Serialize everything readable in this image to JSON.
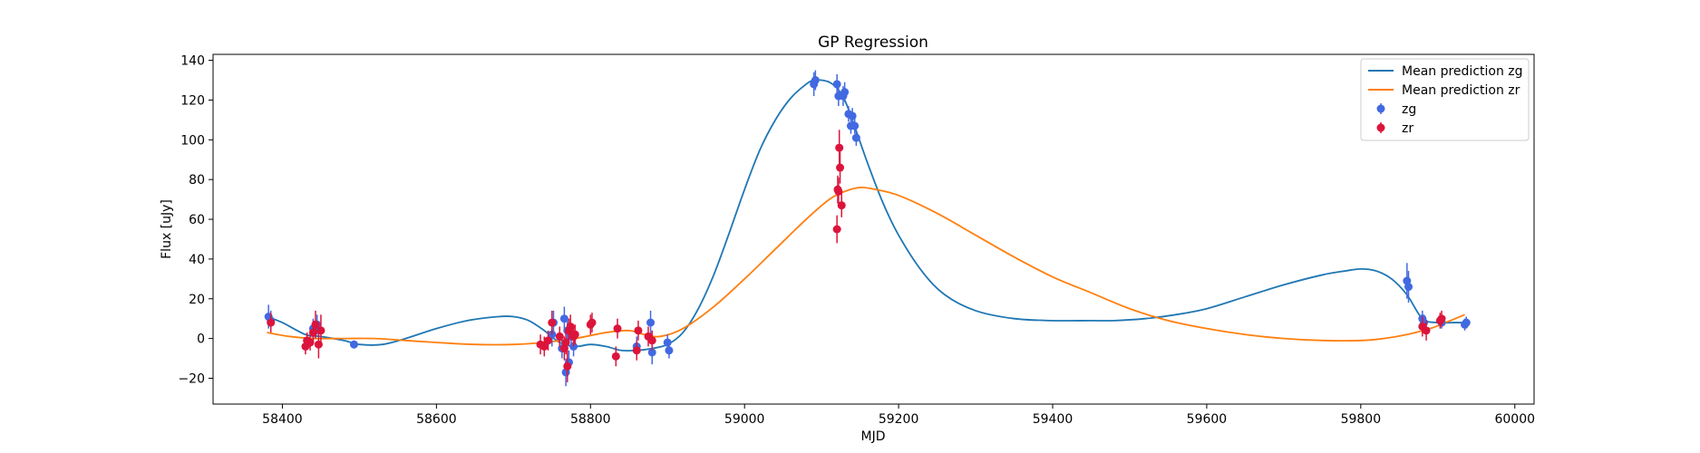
{
  "chart_data": {
    "type": "scatter",
    "title": "GP Regression",
    "xlabel": "MJD",
    "ylabel": "Flux [uJy]",
    "xlim": [
      58310,
      60025
    ],
    "ylim": [
      -33,
      143
    ],
    "xticks": [
      58400,
      58600,
      58800,
      59000,
      59200,
      59400,
      59600,
      59800,
      60000
    ],
    "yticks": [
      -20,
      0,
      20,
      40,
      60,
      80,
      100,
      120,
      140
    ],
    "grid": false,
    "legend_position": "top-right",
    "colors": {
      "zg_line": "#1f77b4",
      "zr_line": "#ff7f0e",
      "zg_points": "#4169e1",
      "zr_points": "#dc143c"
    },
    "lines": [
      {
        "name": "Mean prediction zg",
        "color": "#1f77b4",
        "x": [
          58380,
          58400,
          58430,
          58450,
          58480,
          58500,
          58530,
          58560,
          58600,
          58640,
          58680,
          58700,
          58720,
          58740,
          58760,
          58780,
          58800,
          58820,
          58840,
          58860,
          58880,
          58900,
          58920,
          58940,
          58960,
          58980,
          59000,
          59020,
          59040,
          59060,
          59080,
          59090,
          59100,
          59110,
          59120,
          59130,
          59140,
          59160,
          59180,
          59200,
          59230,
          59260,
          59300,
          59350,
          59400,
          59450,
          59480,
          59520,
          59560,
          59600,
          59650,
          59700,
          59750,
          59780,
          59800,
          59820,
          59840,
          59860,
          59880,
          59900,
          59920,
          59935
        ],
        "y": [
          11,
          8,
          2,
          1,
          -1,
          -3,
          -3,
          0,
          5,
          9,
          11,
          11,
          9,
          4,
          -2,
          -4,
          -3,
          -4,
          -6,
          -6,
          -5,
          -3,
          3,
          15,
          32,
          53,
          75,
          95,
          110,
          121,
          128,
          130,
          130,
          129,
          126,
          120,
          110,
          88,
          68,
          52,
          34,
          22,
          14,
          10,
          9,
          9,
          9,
          10,
          12,
          15,
          21,
          27,
          32,
          34,
          35,
          34,
          30,
          22,
          10,
          8,
          8,
          8
        ]
      },
      {
        "name": "Mean prediction zr",
        "color": "#ff7f0e",
        "x": [
          58380,
          58410,
          58440,
          58480,
          58520,
          58560,
          58600,
          58650,
          58700,
          58740,
          58780,
          58820,
          58850,
          58870,
          58890,
          58920,
          58960,
          59000,
          59040,
          59080,
          59110,
          59130,
          59150,
          59170,
          59200,
          59250,
          59300,
          59350,
          59400,
          59450,
          59500,
          59550,
          59600,
          59650,
          59700,
          59750,
          59800,
          59830,
          59860,
          59890,
          59910,
          59935
        ],
        "y": [
          3,
          1,
          0,
          0,
          0,
          -1,
          -2,
          -3,
          -3,
          -2,
          0,
          3,
          4,
          2,
          1,
          5,
          16,
          30,
          45,
          60,
          70,
          74,
          76,
          75,
          72,
          63,
          52,
          41,
          31,
          23,
          15,
          9,
          5,
          2,
          0,
          -1,
          -1,
          0,
          2,
          5,
          8,
          12
        ]
      }
    ],
    "points": [
      {
        "name": "zg",
        "color": "#4169e1",
        "x": [
          58382,
          58385,
          58440,
          58445,
          58493,
          58750,
          58752,
          58763,
          58766,
          58768,
          58770,
          58772,
          58775,
          58778,
          58860,
          58878,
          58880,
          58900,
          58902,
          59090,
          59092,
          59120,
          59122,
          59128,
          59130,
          59135,
          59138,
          59140,
          59143,
          59145,
          59860,
          59862,
          59880,
          59882,
          59905,
          59935,
          59937
        ],
        "y": [
          11,
          9,
          5,
          7,
          -3,
          2,
          8,
          -5,
          10,
          -17,
          4,
          -12,
          1,
          -4,
          -4,
          8,
          -7,
          -2,
          -6,
          128,
          130,
          128,
          122,
          122,
          124,
          113,
          107,
          112,
          107,
          101,
          29,
          26,
          10,
          8,
          8,
          7,
          8
        ],
        "err": [
          6,
          5,
          5,
          5,
          2,
          6,
          6,
          5,
          6,
          7,
          5,
          6,
          5,
          5,
          5,
          6,
          6,
          4,
          4,
          6,
          5,
          5,
          5,
          5,
          5,
          4,
          4,
          4,
          4,
          4,
          9,
          8,
          4,
          4,
          3,
          3,
          3
        ]
      },
      {
        "name": "zr",
        "color": "#dc143c",
        "x": [
          58385,
          58430,
          58432,
          58436,
          58440,
          58443,
          58447,
          58450,
          58735,
          58740,
          58745,
          58750,
          58760,
          58766,
          58768,
          58770,
          58772,
          58774,
          58778,
          58780,
          58800,
          58802,
          58833,
          58835,
          58860,
          58862,
          58875,
          58880,
          59120,
          59121,
          59122,
          59123,
          59124,
          59126,
          59880,
          59885,
          59903,
          59905
        ],
        "y": [
          8,
          -4,
          -1,
          -2,
          3,
          7,
          -3,
          4,
          -3,
          -4,
          -1,
          8,
          1,
          -5,
          -2,
          -14,
          4,
          6,
          1,
          2,
          7,
          8,
          -9,
          5,
          -6,
          4,
          1,
          -1,
          55,
          75,
          74,
          96,
          86,
          67,
          6,
          4,
          9,
          10
        ],
        "err": [
          5,
          4,
          4,
          4,
          6,
          7,
          7,
          8,
          5,
          5,
          5,
          6,
          5,
          6,
          6,
          8,
          6,
          6,
          5,
          5,
          5,
          5,
          5,
          5,
          5,
          5,
          5,
          5,
          7,
          7,
          7,
          9,
          8,
          6,
          5,
          5,
          4,
          4
        ]
      }
    ]
  }
}
